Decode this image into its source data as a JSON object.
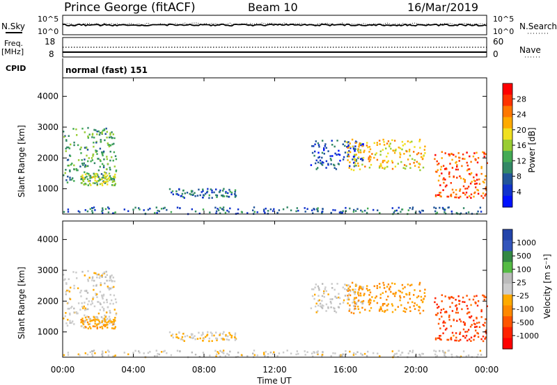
{
  "header": {
    "station": "Prince George (fitACF)",
    "beam": "Beam 10",
    "date": "16/Mar/2019"
  },
  "nsky_panel": {
    "label": "N.Sky",
    "right_label": "N.Search",
    "left_ticks": [
      "10^5",
      "10^0"
    ],
    "right_ticks": [
      "10^5",
      "10^0"
    ]
  },
  "freq_panel": {
    "label_top": "Freq.",
    "label_bottom": "[MHz]",
    "right_label": "Nave",
    "left_ticks": [
      "18",
      "8"
    ],
    "right_ticks": [
      "60",
      "0"
    ]
  },
  "cpid": {
    "label": "CPID",
    "text": "normal (fast) 151"
  },
  "power_panel": {
    "ylabel": "Slant Range [km]",
    "colorbar_label": "Power [dB]",
    "colorbar_ticks": [
      "28",
      "24",
      "20",
      "16",
      "12",
      "8",
      "4"
    ],
    "colors": [
      "#ff0000",
      "#ff3300",
      "#ff7700",
      "#ffaa00",
      "#f0e020",
      "#99cc33",
      "#44aa55",
      "#338866",
      "#225599",
      "#1133cc",
      "#0011ff"
    ]
  },
  "velocity_panel": {
    "ylabel": "Slant Range [km]",
    "colorbar_label": "Velocity [m s⁻¹]",
    "colorbar_ticks": [
      "1000",
      "500",
      "100",
      "25",
      "-25",
      "-100",
      "-500",
      "-1000"
    ],
    "colors": [
      "#2244aa",
      "#3355bb",
      "#338844",
      "#55bb44",
      "#bbbbbb",
      "#cccccc",
      "#ffaa00",
      "#ff8800",
      "#ff5500",
      "#ff2200",
      "#ff0000"
    ]
  },
  "xaxis": {
    "ticks": [
      "00:00",
      "04:00",
      "08:00",
      "12:00",
      "16:00",
      "20:00",
      "00:00"
    ],
    "label": "Time UT"
  },
  "chart_data": {
    "type": "heatmap",
    "x_range_hours": [
      0,
      24
    ],
    "y_range_km": [
      180,
      4600
    ],
    "y_ticks_km": [
      1000,
      2000,
      3000,
      4000
    ],
    "power_db_range": [
      0,
      32
    ],
    "velocity_range": [
      -1000,
      1000
    ],
    "echo_regions": [
      {
        "t_start": 0.0,
        "t_end": 3.0,
        "r_start": 1200,
        "r_end": 3000,
        "power_db": 12,
        "velocity": 0
      },
      {
        "t_start": 1.0,
        "t_end": 3.0,
        "r_start": 1100,
        "r_end": 1500,
        "power_db": 16,
        "velocity": -200
      },
      {
        "t_start": 6.0,
        "t_end": 9.8,
        "r_start": 700,
        "r_end": 1000,
        "power_db": 8,
        "velocity": -80
      },
      {
        "t_start": 14.0,
        "t_end": 17.0,
        "r_start": 1600,
        "r_end": 2600,
        "power_db": 6,
        "velocity": 10
      },
      {
        "t_start": 16.0,
        "t_end": 20.5,
        "r_start": 1600,
        "r_end": 2600,
        "power_db": 20,
        "velocity": -300
      },
      {
        "t_start": 21.0,
        "t_end": 24.0,
        "r_start": 700,
        "r_end": 2200,
        "power_db": 26,
        "velocity": -600
      },
      {
        "t_start": 0.0,
        "t_end": 24.0,
        "r_start": 180,
        "r_end": 400,
        "power_db": 8,
        "velocity": 10
      }
    ]
  }
}
